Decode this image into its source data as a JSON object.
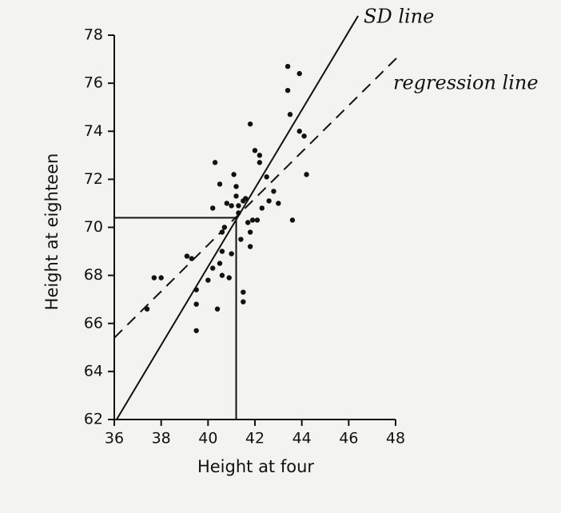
{
  "chart_data": {
    "type": "scatter",
    "x_label": "Height at four",
    "y_label": "Height at eighteen",
    "xlim": [
      36,
      48
    ],
    "xticks": [
      36,
      38,
      40,
      42,
      44,
      46,
      48
    ],
    "ylim": [
      62,
      78
    ],
    "yticks": [
      62,
      64,
      66,
      68,
      70,
      72,
      74,
      76,
      78
    ],
    "color": "#111111",
    "x": [
      37.4,
      37.7,
      38.0,
      39.1,
      39.3,
      39.5,
      39.5,
      39.5,
      40.0,
      40.2,
      40.2,
      40.3,
      40.5,
      40.6,
      40.6,
      40.6,
      40.5,
      40.4,
      40.7,
      40.8,
      40.9,
      41.0,
      41.0,
      41.1,
      41.2,
      41.2,
      41.3,
      41.4,
      41.5,
      41.5,
      41.5,
      41.6,
      41.7,
      41.8,
      41.8,
      41.9,
      41.8,
      42.0,
      42.2,
      42.2,
      42.3,
      42.5,
      42.6,
      42.8,
      43.0,
      43.4,
      43.4,
      43.5,
      43.6,
      43.9,
      43.9,
      44.1,
      44.2,
      41.3,
      42.1
    ],
    "values": [
      66.6,
      67.9,
      67.9,
      68.8,
      68.7,
      67.4,
      66.8,
      65.7,
      67.8,
      68.3,
      70.8,
      72.7,
      71.8,
      69.8,
      69.0,
      68.0,
      68.5,
      66.6,
      70.0,
      71.0,
      67.9,
      68.9,
      70.9,
      72.2,
      71.7,
      71.3,
      70.6,
      69.5,
      66.9,
      67.3,
      71.1,
      71.2,
      70.2,
      69.8,
      69.2,
      70.3,
      74.3,
      73.2,
      73.0,
      72.7,
      70.8,
      72.1,
      71.1,
      71.5,
      71.0,
      75.7,
      76.7,
      74.7,
      70.3,
      76.4,
      74.0,
      73.8,
      72.2,
      70.9,
      70.3
    ],
    "mean": {
      "x": 41.2,
      "y": 70.4
    },
    "sd_line": {
      "label": "SD line",
      "x": [
        36.1,
        46.4
      ],
      "y": [
        62,
        78.8
      ],
      "dashed": false
    },
    "regression_line": {
      "label": "regression line",
      "x": [
        36,
        48.2
      ],
      "y": [
        65.4,
        77.2
      ],
      "dashed": true
    }
  }
}
